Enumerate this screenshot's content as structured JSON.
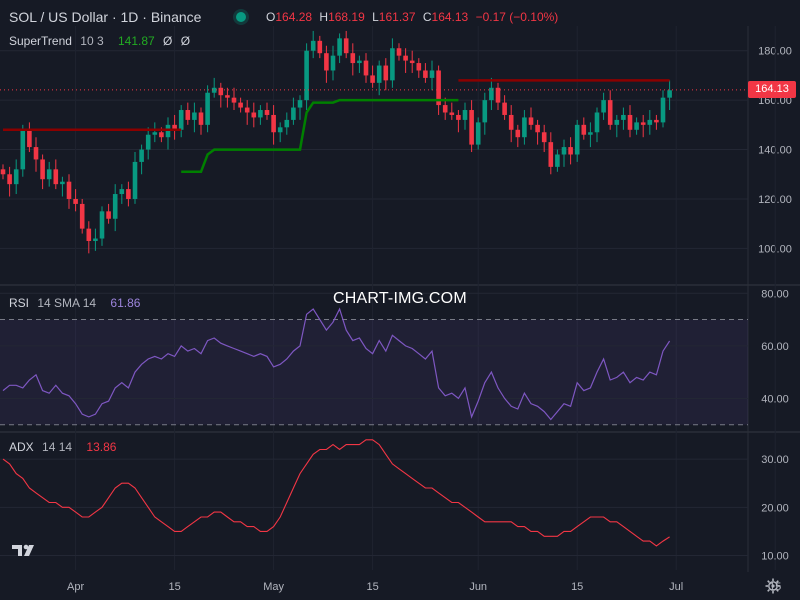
{
  "header": {
    "symbol": "SOL / US Dollar · 1D · Binance",
    "o_label": "O",
    "o_value": "164.28",
    "h_label": "H",
    "h_value": "168.19",
    "l_label": "L",
    "l_value": "161.37",
    "c_label": "C",
    "c_value": "164.13",
    "change": "−0.17 (−0.10%)"
  },
  "indicators": {
    "supertrend": {
      "name": "SuperTrend",
      "params": "10 3",
      "value": "141.87",
      "icons": [
        "Ø",
        "Ø"
      ]
    },
    "rsi": {
      "name": "RSI",
      "params": "14 SMA 14",
      "value": "61.86"
    },
    "adx": {
      "name": "ADX",
      "params": "14 14",
      "value": "13.86"
    }
  },
  "watermark": "CHART-IMG.COM",
  "last_price": "164.13",
  "x_axis_labels": [
    "Apr",
    "15",
    "May",
    "15",
    "Jun",
    "15",
    "Jul",
    "15"
  ],
  "colors": {
    "up": "#089981",
    "down": "#f23645",
    "st_up": "#008000",
    "st_down": "#8b0000",
    "rsi": "#7e57c2",
    "adx": "#f23645",
    "bg": "#161a25"
  },
  "chart_data": [
    {
      "type": "candlestick",
      "title": "SOL / US Dollar · 1D · Binance",
      "y_ticks": [
        100,
        120,
        140,
        160,
        180
      ],
      "ylim": [
        86,
        190
      ],
      "closes": [
        130,
        126,
        132,
        148,
        141,
        136,
        128,
        132,
        126,
        127,
        120,
        118,
        108,
        103,
        104,
        115,
        112,
        122,
        124,
        120,
        135,
        140,
        146,
        147,
        145,
        150,
        148,
        156,
        152,
        155,
        150,
        163,
        165,
        162,
        161,
        159,
        157,
        155,
        153,
        156,
        154,
        147,
        149,
        152,
        157,
        160,
        180,
        184,
        179,
        172,
        178,
        185,
        179,
        175,
        176,
        170,
        167,
        174,
        168,
        181,
        178,
        176,
        175,
        172,
        169,
        172,
        158,
        155,
        154,
        152,
        156,
        142,
        151,
        160,
        165,
        159,
        154,
        148,
        145,
        153,
        150,
        147,
        143,
        133,
        138,
        141,
        138,
        150,
        146,
        147,
        155,
        160,
        150,
        152,
        154,
        148,
        151,
        150,
        152,
        151,
        161,
        164
      ],
      "st_value": "141.87"
    },
    {
      "type": "line",
      "title": "RSI 14 SMA 14",
      "y_ticks": [
        40,
        60,
        80
      ],
      "bands": [
        30,
        70
      ],
      "ylim": [
        28,
        82
      ],
      "values": [
        43,
        45,
        45,
        44,
        47,
        49,
        43,
        42,
        45,
        42,
        41,
        38,
        34,
        33,
        34,
        38,
        39,
        44,
        46,
        44,
        50,
        53,
        55,
        56,
        55,
        57,
        56,
        60,
        58,
        59,
        57,
        62,
        63,
        61,
        60,
        59,
        58,
        57,
        56,
        57,
        56,
        52,
        53,
        55,
        58,
        60,
        72,
        74,
        70,
        66,
        69,
        74,
        66,
        62,
        63,
        59,
        57,
        62,
        58,
        64,
        62,
        60,
        59,
        57,
        55,
        58,
        44,
        41,
        42,
        40,
        44,
        33,
        39,
        46,
        50,
        44,
        40,
        37,
        36,
        42,
        38,
        37,
        35,
        32,
        35,
        38,
        37,
        46,
        43,
        44,
        50,
        55,
        47,
        48,
        50,
        46,
        48,
        47,
        50,
        49,
        58,
        61.86
      ]
    },
    {
      "type": "line",
      "title": "ADX 14 14",
      "y_ticks": [
        10,
        20,
        30
      ],
      "ylim": [
        7,
        35
      ],
      "values": [
        30,
        29,
        27,
        26,
        24,
        23,
        22,
        21,
        21,
        20,
        20,
        19,
        18,
        18,
        19,
        20,
        22,
        24,
        25,
        25,
        24,
        22,
        20,
        18,
        17,
        16,
        15,
        15,
        16,
        17,
        18,
        18,
        19,
        19,
        18,
        17,
        17,
        16,
        16,
        15,
        15,
        16,
        18,
        21,
        24,
        27,
        29,
        31,
        32,
        32,
        33,
        32,
        33,
        33,
        33,
        34,
        34,
        33,
        31,
        29,
        28,
        27,
        26,
        25,
        24,
        24,
        23,
        22,
        21,
        21,
        20,
        19,
        18,
        17,
        17,
        17,
        17,
        17,
        16,
        16,
        15,
        15,
        14,
        14,
        14,
        15,
        15,
        16,
        17,
        18,
        18,
        18,
        17,
        17,
        16,
        15,
        14,
        13,
        13,
        12,
        13,
        13.86
      ]
    }
  ]
}
